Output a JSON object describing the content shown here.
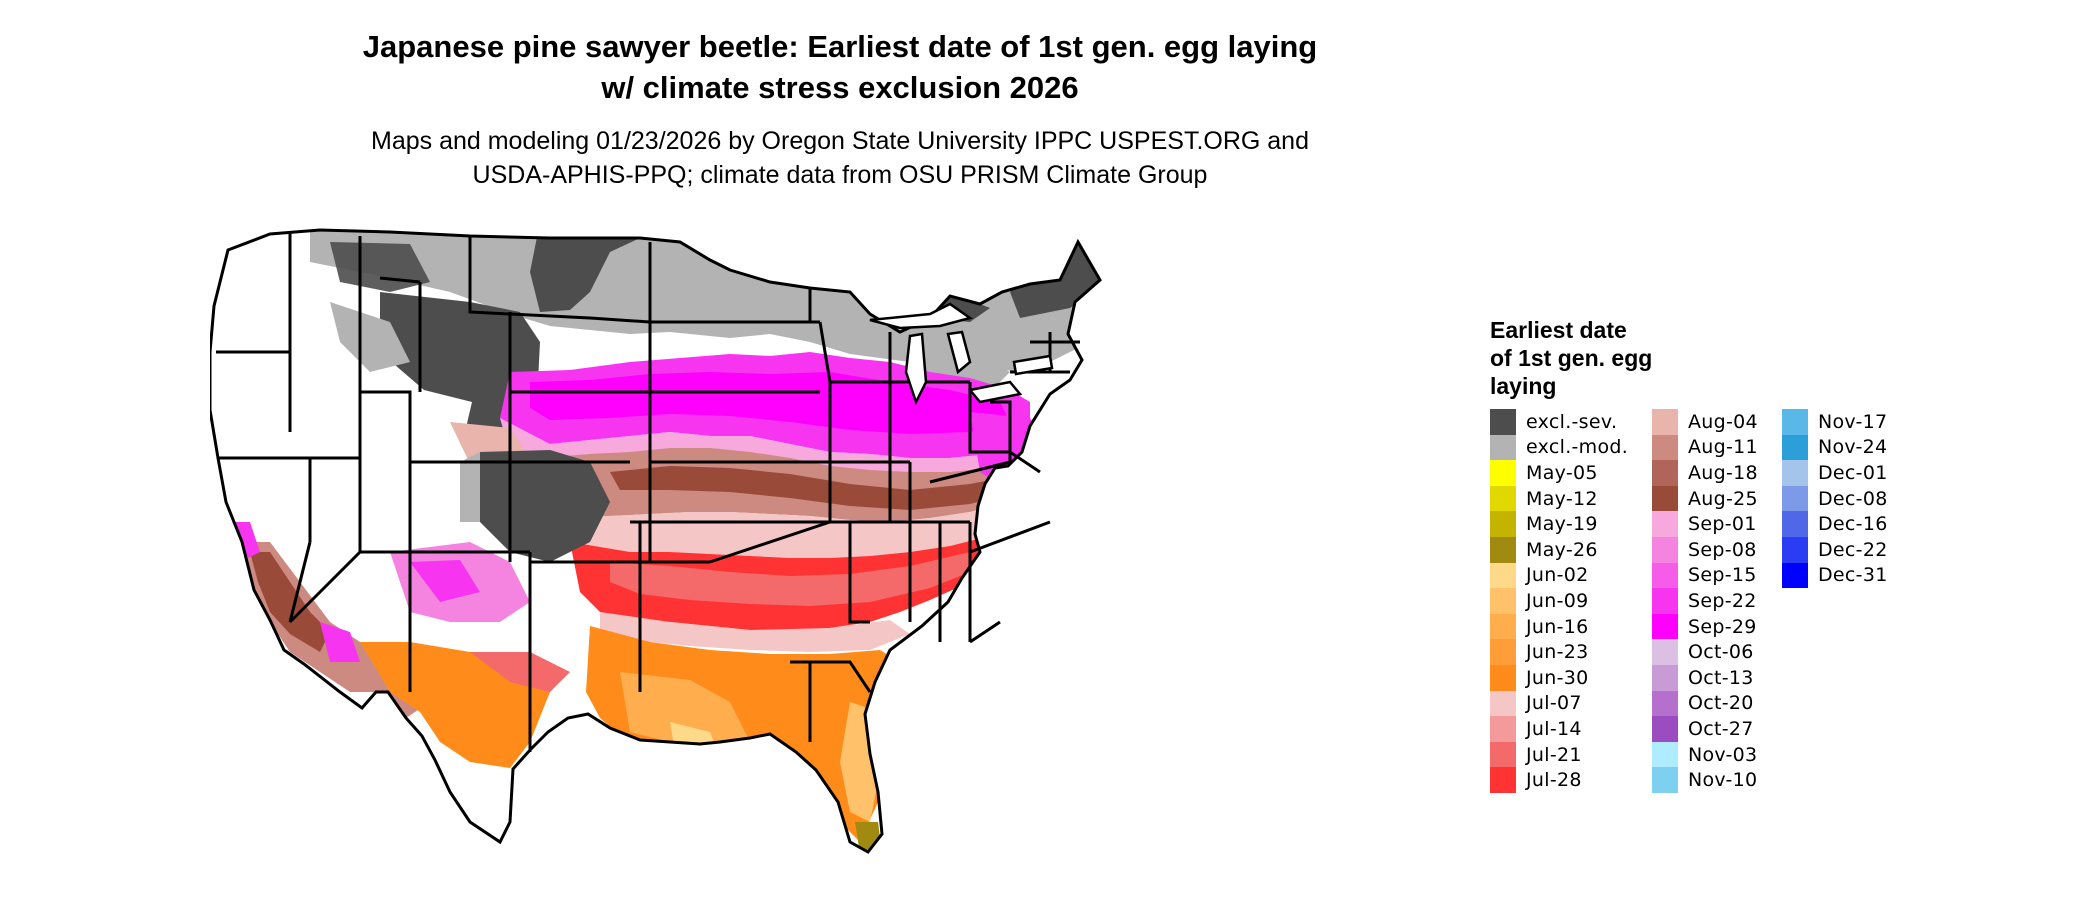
{
  "title_line1": "Japanese pine sawyer beetle: Earliest date of 1st gen. egg laying",
  "title_line2": "w/ climate stress exclusion 2026",
  "subtitle_line1": "Maps and modeling 01/23/2026 by Oregon State University IPPC USPEST.ORG and",
  "subtitle_line2": "USDA-APHIS-PPQ; climate data from OSU PRISM Climate Group",
  "legend": {
    "title_lines": [
      "Earliest date",
      "of 1st gen. egg",
      "laying"
    ],
    "columns": [
      [
        {
          "label": "excl.-sev.",
          "color": "#4d4d4d"
        },
        {
          "label": "excl.-mod.",
          "color": "#b3b3b3"
        },
        {
          "label": "May-05",
          "color": "#ffff00"
        },
        {
          "label": "May-12",
          "color": "#e0d800"
        },
        {
          "label": "May-19",
          "color": "#c4b400"
        },
        {
          "label": "May-26",
          "color": "#a08a10"
        },
        {
          "label": "Jun-02",
          "color": "#ffd98a"
        },
        {
          "label": "Jun-09",
          "color": "#ffc26b"
        },
        {
          "label": "Jun-16",
          "color": "#ffad4d"
        },
        {
          "label": "Jun-23",
          "color": "#ff9d38"
        },
        {
          "label": "Jun-30",
          "color": "#ff8c1a"
        },
        {
          "label": "Jul-07",
          "color": "#f5c6c6"
        },
        {
          "label": "Jul-14",
          "color": "#f59a9a"
        },
        {
          "label": "Jul-21",
          "color": "#f46a6a"
        },
        {
          "label": "Jul-28",
          "color": "#ff3333"
        }
      ],
      [
        {
          "label": "Aug-04",
          "color": "#e8b4ac"
        },
        {
          "label": "Aug-11",
          "color": "#cc8a80"
        },
        {
          "label": "Aug-18",
          "color": "#b0645a"
        },
        {
          "label": "Aug-25",
          "color": "#9a4a38"
        },
        {
          "label": "Sep-01",
          "color": "#f7a8dc"
        },
        {
          "label": "Sep-08",
          "color": "#f584e0"
        },
        {
          "label": "Sep-15",
          "color": "#f55ce8"
        },
        {
          "label": "Sep-22",
          "color": "#f735f0"
        },
        {
          "label": "Sep-29",
          "color": "#ff00ff"
        },
        {
          "label": "Oct-06",
          "color": "#dcc0e4"
        },
        {
          "label": "Oct-13",
          "color": "#c89ad6"
        },
        {
          "label": "Oct-20",
          "color": "#b470cc"
        },
        {
          "label": "Oct-27",
          "color": "#9a4cc0"
        },
        {
          "label": "Nov-03",
          "color": "#b0ecff"
        },
        {
          "label": "Nov-10",
          "color": "#7dd0f0"
        }
      ],
      [
        {
          "label": "Nov-17",
          "color": "#5ab8e8"
        },
        {
          "label": "Nov-24",
          "color": "#2c9fd8"
        },
        {
          "label": "Dec-01",
          "color": "#a4c4ec"
        },
        {
          "label": "Dec-08",
          "color": "#7c9ae8"
        },
        {
          "label": "Dec-16",
          "color": "#5068e8"
        },
        {
          "label": "Dec-22",
          "color": "#2a3cf4"
        },
        {
          "label": "Dec-31",
          "color": "#0000ff"
        }
      ]
    ]
  }
}
